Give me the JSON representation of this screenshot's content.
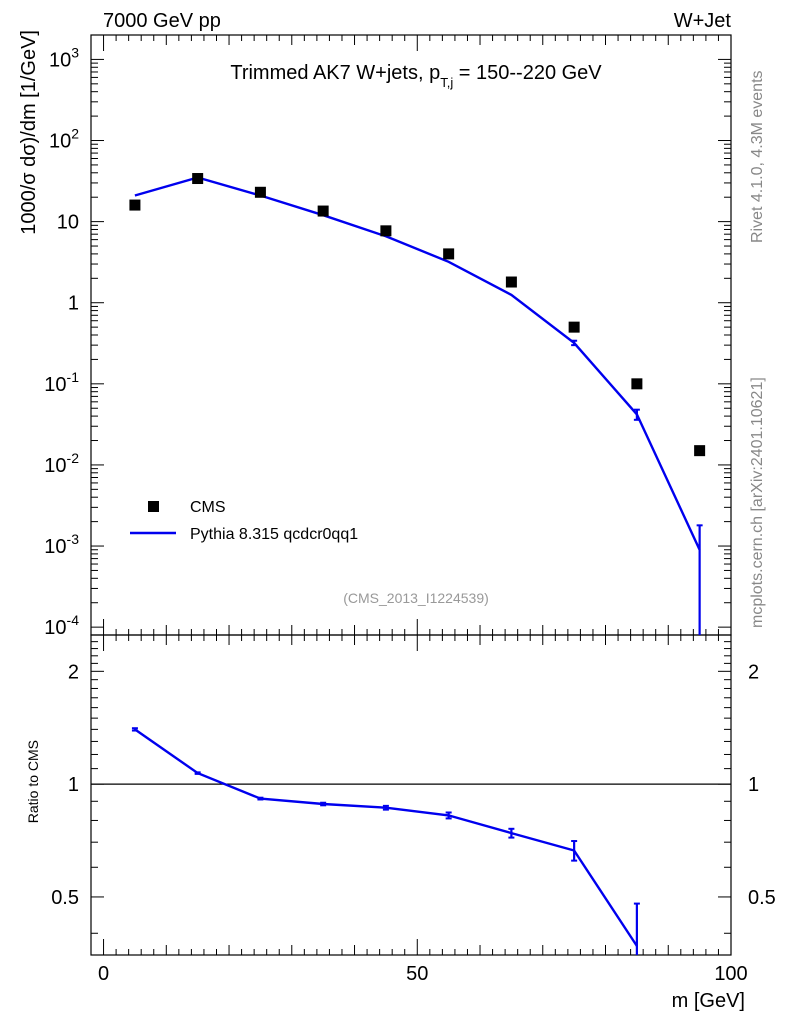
{
  "header": {
    "left": "7000 GeV pp",
    "right": "W+Jet"
  },
  "side_labels": {
    "rivet": "Rivet 4.1.0,  4.3M events",
    "mcplots": "mcplots.cern.ch [arXiv:2401.10621]"
  },
  "chart_data": [
    {
      "type": "scatter",
      "panel": "main",
      "title": "Trimmed AK7 W+jets, p_T,j = 150--220 GeV",
      "title_parts": {
        "main": "Trimmed AK7 W+jets, p",
        "sub": "T,j",
        "tail": " = 150--220 GeV"
      },
      "ylabel": "1000/σ  dσ)/dm [1/GeV]",
      "yscale": "log",
      "ylim": [
        8e-05,
        2000
      ],
      "xlim": [
        -2,
        100
      ],
      "analysis": "(CMS_2013_I1224539)",
      "y_tick_labels": [
        "10^-4",
        "10^-3",
        "10^-2",
        "10^-1",
        "1",
        "10",
        "10^2",
        "10^3"
      ],
      "legend": [
        {
          "name": "CMS",
          "marker": "square",
          "color": "#000000"
        },
        {
          "name": "Pythia 8.315 qcdcr0qq1",
          "marker": "line",
          "color": "#0000ee"
        }
      ],
      "series": [
        {
          "name": "CMS",
          "x": [
            5,
            15,
            25,
            35,
            45,
            55,
            65,
            75,
            85,
            95
          ],
          "y": [
            16,
            34,
            23,
            13.5,
            7.7,
            4.0,
            1.8,
            0.5,
            0.1,
            0.015
          ]
        },
        {
          "name": "Pythia 8.315 qcdcr0qq1",
          "x": [
            5,
            15,
            25,
            35,
            45,
            55,
            65,
            75,
            85,
            95
          ],
          "y": [
            21,
            35,
            21,
            12,
            6.6,
            3.2,
            1.25,
            0.32,
            0.042,
            0.0009
          ],
          "err_low": [
            21,
            35,
            21,
            12,
            6.6,
            3.2,
            1.25,
            0.3,
            0.036,
            5e-05
          ],
          "err_high": [
            21,
            35,
            21,
            12,
            6.6,
            3.2,
            1.25,
            0.34,
            0.048,
            0.0018
          ]
        }
      ]
    },
    {
      "type": "line",
      "panel": "ratio",
      "ylabel": "Ratio to CMS",
      "xlabel": "m [GeV]",
      "yscale": "log",
      "ylim": [
        0.35,
        2.5
      ],
      "xlim": [
        -2,
        100
      ],
      "x_ticks": [
        0,
        50,
        100
      ],
      "x_tick_labels": [
        "0",
        "50",
        "100"
      ],
      "y_ticks": [
        0.5,
        1,
        2
      ],
      "y_tick_labels": [
        "0.5",
        "1",
        "2"
      ],
      "reference_line": 1,
      "series": [
        {
          "name": "Pythia 8.315 qcdcr0qq1",
          "x": [
            5,
            15,
            25,
            35,
            45,
            55,
            65,
            75,
            85
          ],
          "y": [
            1.4,
            1.07,
            0.915,
            0.885,
            0.865,
            0.825,
            0.74,
            0.665,
            0.37
          ],
          "err_low": [
            1.39,
            1.065,
            0.91,
            0.878,
            0.855,
            0.81,
            0.72,
            0.625,
            0.3
          ],
          "err_high": [
            1.41,
            1.075,
            0.92,
            0.892,
            0.875,
            0.84,
            0.76,
            0.705,
            0.48
          ]
        }
      ]
    }
  ]
}
